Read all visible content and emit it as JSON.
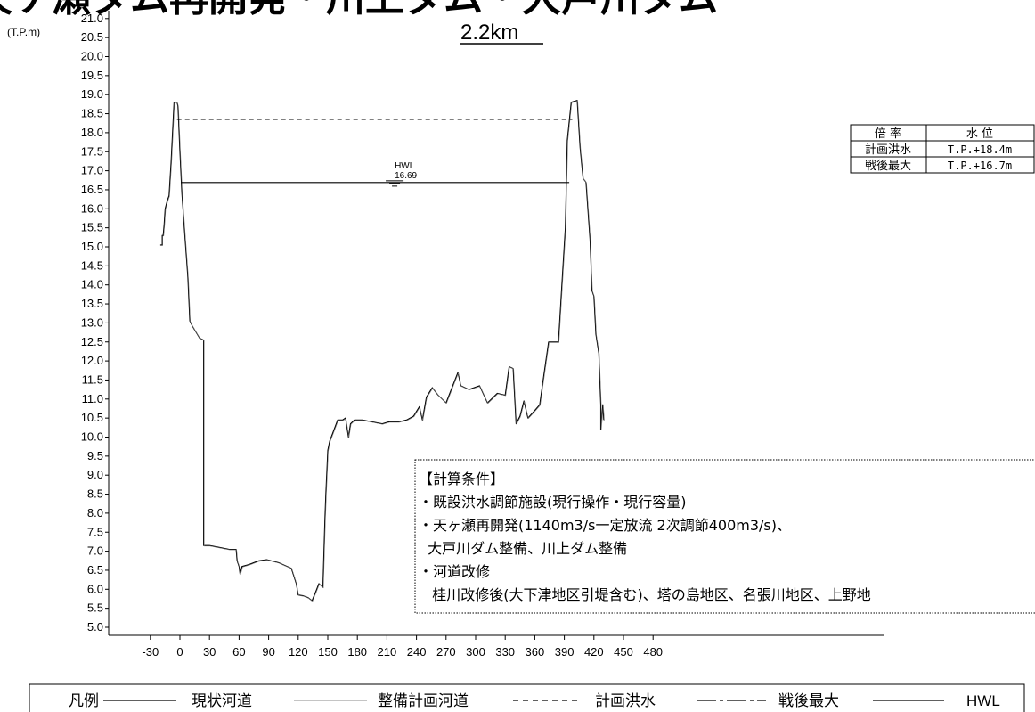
{
  "header": {
    "title": "天ケ瀬ダム再開発・川上ダム・大戸川ダム",
    "subtitle": "2.2km"
  },
  "chart_data": {
    "type": "line",
    "ylabel": "(T.P.m)",
    "xlim": [
      -40,
      490
    ],
    "ylim": [
      5.0,
      21.0
    ],
    "x_ticks": [
      -30,
      0,
      30,
      60,
      90,
      120,
      150,
      180,
      210,
      240,
      270,
      300,
      330,
      360,
      390,
      420,
      450,
      480
    ],
    "y_ticks": [
      "5.0",
      "5.5",
      "6.0",
      "6.5",
      "7.0",
      "7.5",
      "8.0",
      "8.5",
      "9.0",
      "9.5",
      "10.0",
      "10.5",
      "11.0",
      "11.5",
      "12.0",
      "12.5",
      "13.0",
      "13.5",
      "14.0",
      "14.5",
      "15.0",
      "15.5",
      "16.0",
      "16.5",
      "17.0",
      "17.5",
      "18.0",
      "18.5",
      "19.0",
      "19.5",
      "20.0",
      "20.5",
      "21.0"
    ],
    "series": [
      {
        "name": "現状河道",
        "style": "solid",
        "color": "#000000",
        "points": [
          [
            -20,
            15.05
          ],
          [
            -18,
            15.05
          ],
          [
            -18,
            15.3
          ],
          [
            -17,
            15.3
          ],
          [
            -16,
            15.6
          ],
          [
            -15,
            16.0
          ],
          [
            -13,
            16.2
          ],
          [
            -11,
            16.35
          ],
          [
            -9,
            17.2
          ],
          [
            -6,
            18.8
          ],
          [
            -3,
            18.8
          ],
          [
            -2,
            18.7
          ],
          [
            0,
            17.5
          ],
          [
            2,
            16.4
          ],
          [
            5,
            15.3
          ],
          [
            8,
            14.2
          ],
          [
            10,
            13.05
          ],
          [
            13,
            12.9
          ],
          [
            20,
            12.6
          ],
          [
            24,
            12.55
          ],
          [
            24,
            7.15
          ],
          [
            30,
            7.15
          ],
          [
            40,
            7.1
          ],
          [
            50,
            7.05
          ],
          [
            57,
            7.05
          ],
          [
            58,
            6.75
          ],
          [
            60,
            6.6
          ],
          [
            61,
            6.4
          ],
          [
            63,
            6.6
          ],
          [
            70,
            6.65
          ],
          [
            80,
            6.75
          ],
          [
            88,
            6.78
          ],
          [
            100,
            6.7
          ],
          [
            113,
            6.55
          ],
          [
            118,
            6.15
          ],
          [
            120,
            5.85
          ],
          [
            125,
            5.83
          ],
          [
            130,
            5.78
          ],
          [
            134,
            5.7
          ],
          [
            138,
            5.95
          ],
          [
            141,
            6.15
          ],
          [
            143,
            6.1
          ],
          [
            145,
            6.05
          ],
          [
            147,
            7.8
          ],
          [
            148,
            8.5
          ],
          [
            150,
            9.65
          ],
          [
            152,
            9.9
          ],
          [
            155,
            10.1
          ],
          [
            160,
            10.45
          ],
          [
            165,
            10.45
          ],
          [
            168,
            10.5
          ],
          [
            171,
            10.0
          ],
          [
            173,
            10.35
          ],
          [
            177,
            10.45
          ],
          [
            185,
            10.45
          ],
          [
            195,
            10.4
          ],
          [
            205,
            10.35
          ],
          [
            212,
            10.4
          ],
          [
            222,
            10.4
          ],
          [
            230,
            10.45
          ],
          [
            237,
            10.55
          ],
          [
            243,
            10.8
          ],
          [
            246,
            10.45
          ],
          [
            250,
            11.05
          ],
          [
            256,
            11.3
          ],
          [
            262,
            11.1
          ],
          [
            270,
            10.9
          ],
          [
            282,
            11.7
          ],
          [
            285,
            11.35
          ],
          [
            293,
            11.25
          ],
          [
            304,
            11.35
          ],
          [
            312,
            10.9
          ],
          [
            322,
            11.15
          ],
          [
            330,
            11.1
          ],
          [
            334,
            11.85
          ],
          [
            338,
            11.8
          ],
          [
            341,
            10.35
          ],
          [
            345,
            10.55
          ],
          [
            349,
            10.95
          ],
          [
            353,
            10.5
          ],
          [
            360,
            10.7
          ],
          [
            365,
            10.85
          ],
          [
            369,
            11.6
          ],
          [
            374,
            12.5
          ],
          [
            384,
            12.5
          ],
          [
            387,
            13.8
          ],
          [
            391,
            15.5
          ],
          [
            393,
            17.8
          ],
          [
            397,
            18.8
          ],
          [
            403,
            18.85
          ],
          [
            406,
            17.6
          ],
          [
            409,
            16.8
          ],
          [
            412,
            16.7
          ],
          [
            416,
            15.2
          ],
          [
            418,
            13.85
          ],
          [
            420,
            13.7
          ],
          [
            422,
            12.7
          ],
          [
            425,
            12.2
          ],
          [
            427,
            10.85
          ],
          [
            427,
            10.2
          ],
          [
            429,
            10.85
          ],
          [
            430,
            10.45
          ]
        ]
      },
      {
        "name": "整備計画河道",
        "style": "solid-thin",
        "color": "#777777",
        "points": [
          [
            -20,
            15.05
          ],
          [
            -18,
            15.05
          ],
          [
            -18,
            15.3
          ],
          [
            -17,
            15.3
          ],
          [
            -16,
            15.6
          ],
          [
            -15,
            16.0
          ],
          [
            -13,
            16.2
          ],
          [
            -11,
            16.35
          ],
          [
            -9,
            17.2
          ],
          [
            -6,
            18.8
          ],
          [
            -3,
            18.8
          ],
          [
            -2,
            18.7
          ],
          [
            0,
            17.5
          ],
          [
            2,
            16.4
          ],
          [
            5,
            15.3
          ],
          [
            8,
            14.2
          ],
          [
            10,
            13.05
          ],
          [
            13,
            12.9
          ],
          [
            20,
            12.6
          ],
          [
            24,
            12.55
          ],
          [
            24,
            7.15
          ],
          [
            30,
            7.15
          ],
          [
            40,
            7.1
          ],
          [
            50,
            7.05
          ],
          [
            57,
            7.05
          ],
          [
            58,
            6.75
          ],
          [
            60,
            6.6
          ],
          [
            61,
            6.4
          ],
          [
            63,
            6.6
          ],
          [
            70,
            6.65
          ],
          [
            80,
            6.75
          ],
          [
            88,
            6.78
          ],
          [
            100,
            6.7
          ],
          [
            113,
            6.55
          ],
          [
            118,
            6.15
          ],
          [
            120,
            5.85
          ],
          [
            125,
            5.83
          ],
          [
            130,
            5.78
          ],
          [
            134,
            5.7
          ],
          [
            138,
            5.95
          ],
          [
            141,
            6.15
          ],
          [
            143,
            6.1
          ],
          [
            145,
            6.05
          ],
          [
            147,
            7.8
          ],
          [
            148,
            8.5
          ],
          [
            150,
            9.65
          ],
          [
            152,
            9.9
          ],
          [
            155,
            10.1
          ],
          [
            160,
            10.45
          ],
          [
            165,
            10.45
          ],
          [
            168,
            10.5
          ],
          [
            171,
            10.0
          ],
          [
            173,
            10.35
          ],
          [
            177,
            10.45
          ],
          [
            185,
            10.45
          ],
          [
            195,
            10.4
          ],
          [
            205,
            10.35
          ],
          [
            212,
            10.4
          ],
          [
            222,
            10.4
          ],
          [
            230,
            10.45
          ],
          [
            237,
            10.55
          ],
          [
            243,
            10.8
          ],
          [
            246,
            10.45
          ],
          [
            250,
            11.05
          ],
          [
            256,
            11.3
          ],
          [
            262,
            11.1
          ],
          [
            270,
            10.9
          ],
          [
            282,
            11.7
          ],
          [
            285,
            11.35
          ],
          [
            293,
            11.25
          ],
          [
            304,
            11.35
          ],
          [
            312,
            10.9
          ],
          [
            322,
            11.15
          ],
          [
            330,
            11.1
          ],
          [
            334,
            11.85
          ],
          [
            338,
            11.8
          ],
          [
            341,
            10.35
          ],
          [
            345,
            10.55
          ],
          [
            349,
            10.95
          ],
          [
            353,
            10.5
          ],
          [
            360,
            10.7
          ],
          [
            365,
            10.85
          ],
          [
            369,
            11.6
          ],
          [
            374,
            12.5
          ],
          [
            384,
            12.5
          ],
          [
            387,
            13.8
          ],
          [
            391,
            15.5
          ],
          [
            393,
            17.8
          ],
          [
            397,
            18.8
          ],
          [
            403,
            18.85
          ],
          [
            406,
            17.6
          ],
          [
            409,
            16.8
          ],
          [
            412,
            16.7
          ],
          [
            416,
            15.2
          ],
          [
            418,
            13.85
          ],
          [
            420,
            13.7
          ],
          [
            422,
            12.7
          ],
          [
            425,
            12.2
          ],
          [
            427,
            10.85
          ],
          [
            427,
            10.2
          ],
          [
            429,
            10.85
          ],
          [
            430,
            10.45
          ]
        ]
      },
      {
        "name": "計画洪水",
        "style": "dashed",
        "color": "#000000",
        "points": [
          [
            -3,
            18.35
          ],
          [
            398,
            18.35
          ]
        ]
      },
      {
        "name": "戦後最大",
        "style": "dashdot",
        "color": "#000000",
        "points": [
          [
            1,
            16.65
          ],
          [
            395,
            16.65
          ]
        ]
      },
      {
        "name": "HWL",
        "style": "solid",
        "color": "#000000",
        "points": [
          [
            1,
            16.69
          ],
          [
            395,
            16.69
          ]
        ]
      }
    ],
    "hwl_label": {
      "line1": "HWL",
      "line2": "16.69",
      "x": 207,
      "y": 16.69
    }
  },
  "water_table": {
    "headers": [
      "倍 率",
      "水 位"
    ],
    "rows": [
      {
        "label": "計画洪水",
        "value": "T.P.+18.4m"
      },
      {
        "label": "戦後最大",
        "value": "T.P.+16.7m"
      }
    ]
  },
  "conditions": {
    "lines": [
      "【計算条件】",
      "・既設洪水調節施設(現行操作・現行容量)",
      "・天ヶ瀬再開発(1140m3/s一定放流 2次調節400m3/s)、",
      "  大戸川ダム整備、川上ダム整備",
      "・河道改修",
      "   桂川改修後(大下津地区引堤含む)、塔の島地区、名張川地区、上野地"
    ]
  },
  "legend": {
    "title": "凡例",
    "items": [
      "現状河道",
      "整備計画河道",
      "計画洪水",
      "戦後最大",
      "HWL"
    ]
  }
}
